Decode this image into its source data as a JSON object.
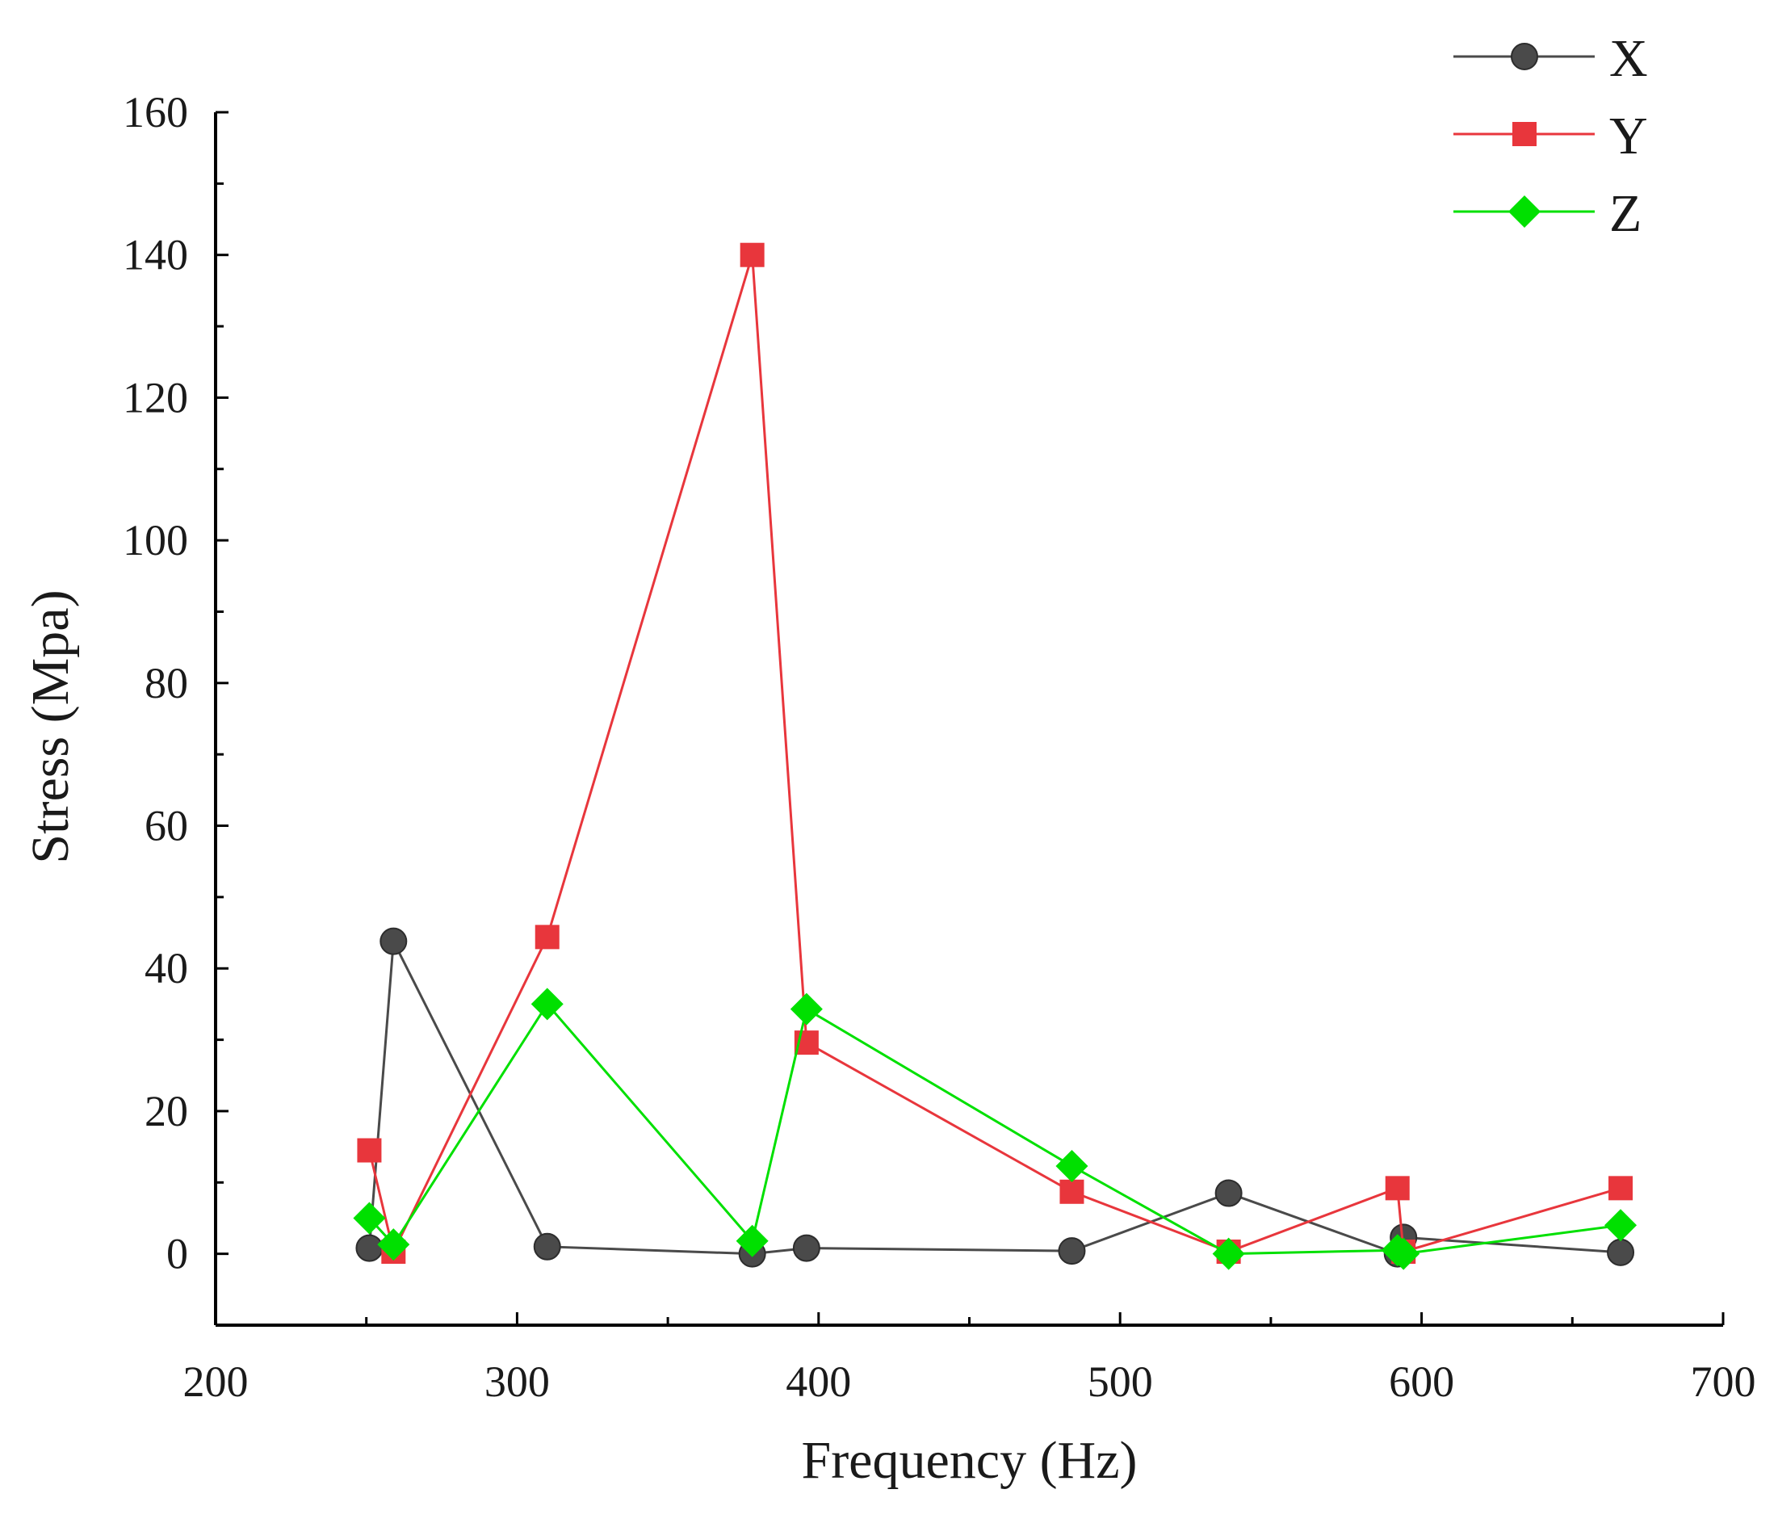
{
  "chart_data": {
    "type": "line",
    "title": "",
    "xlabel": "Frequency (Hz)",
    "ylabel": "Stress (Mpa)",
    "xlim": [
      200,
      700
    ],
    "ylim": [
      -10,
      160
    ],
    "xticks": [
      200,
      300,
      400,
      500,
      600,
      700
    ],
    "yticks": [
      0,
      20,
      40,
      60,
      80,
      100,
      120,
      140,
      160
    ],
    "grid": false,
    "legend_position": "top-right",
    "series": [
      {
        "name": "X",
        "color": "#4a4a4a",
        "marker": "circle",
        "x": [
          251,
          259,
          310,
          378,
          396,
          484,
          536,
          592,
          594,
          666
        ],
        "y": [
          0.8,
          43.8,
          1.0,
          0.0,
          0.8,
          0.4,
          8.5,
          0.0,
          2.3,
          0.2
        ]
      },
      {
        "name": "Y",
        "color": "#e8363c",
        "marker": "square",
        "x": [
          251,
          259,
          310,
          378,
          396,
          484,
          536,
          592,
          594,
          666
        ],
        "y": [
          14.5,
          0.3,
          44.4,
          140.0,
          29.6,
          8.7,
          0.3,
          9.2,
          0.3,
          9.2
        ]
      },
      {
        "name": "Z",
        "color": "#00e000",
        "marker": "diamond",
        "x": [
          251,
          259,
          310,
          378,
          396,
          484,
          536,
          592,
          594,
          666
        ],
        "y": [
          5.0,
          1.3,
          35.0,
          1.8,
          34.3,
          12.3,
          0.0,
          0.5,
          0.0,
          4.0
        ]
      }
    ]
  }
}
